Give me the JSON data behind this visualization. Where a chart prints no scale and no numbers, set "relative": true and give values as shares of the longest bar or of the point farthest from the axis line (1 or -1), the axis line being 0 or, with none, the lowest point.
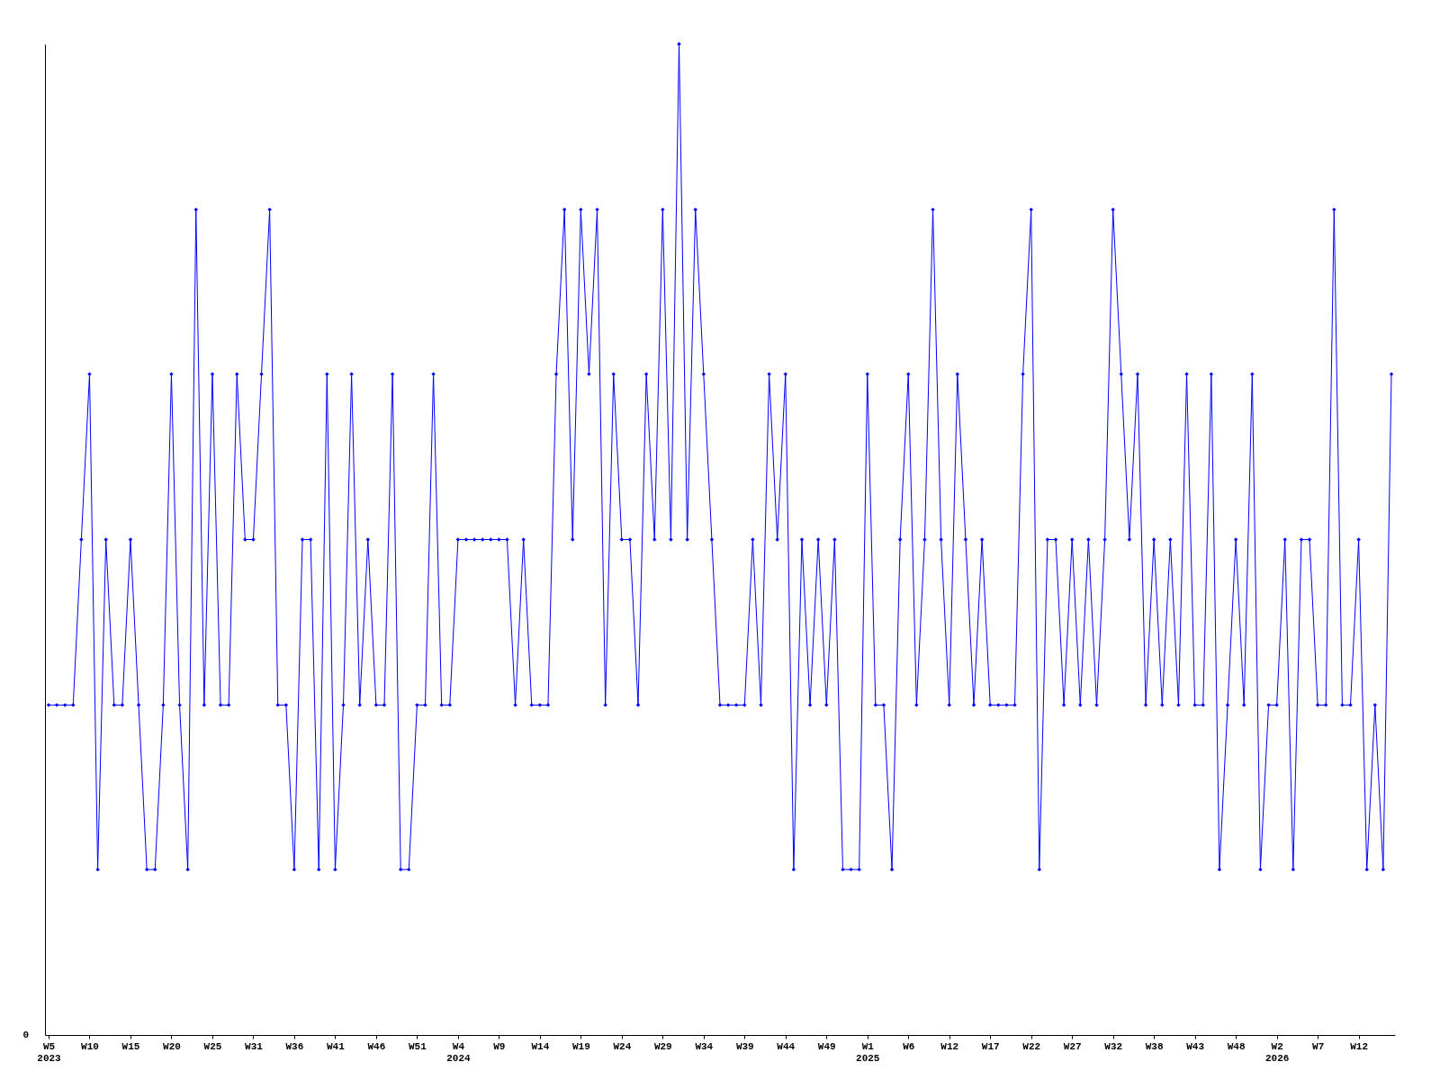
{
  "chart_data": {
    "type": "line",
    "relative": true,
    "marker": "diamond",
    "line_style": "solid",
    "grid": false,
    "annotations": [
      "0"
    ],
    "categories": [
      "W5\n2023",
      null,
      null,
      null,
      null,
      "W10",
      null,
      null,
      null,
      null,
      "W15",
      null,
      null,
      null,
      null,
      "W20",
      null,
      null,
      null,
      null,
      "W25",
      null,
      null,
      null,
      null,
      "W31",
      null,
      null,
      null,
      null,
      "W36",
      null,
      null,
      null,
      null,
      "W41",
      null,
      null,
      null,
      null,
      "W46",
      null,
      null,
      null,
      null,
      "W51",
      null,
      null,
      null,
      null,
      "W4\n2024",
      null,
      null,
      null,
      null,
      "W9",
      null,
      null,
      null,
      null,
      "W14",
      null,
      null,
      null,
      null,
      "W19",
      null,
      null,
      null,
      null,
      "W24",
      null,
      null,
      null,
      null,
      "W29",
      null,
      null,
      null,
      null,
      "W34",
      null,
      null,
      null,
      null,
      "W39",
      null,
      null,
      null,
      null,
      "W44",
      null,
      null,
      null,
      null,
      "W49",
      null,
      null,
      null,
      null,
      "W1\n2025",
      null,
      null,
      null,
      null,
      "W6",
      null,
      null,
      null,
      null,
      "W12",
      null,
      null,
      null,
      null,
      "W17",
      null,
      null,
      null,
      null,
      "W22",
      null,
      null,
      null,
      null,
      "W27",
      null,
      null,
      null,
      null,
      "W32",
      null,
      null,
      null,
      null,
      "W38",
      null,
      null,
      null,
      null,
      "W43",
      null,
      null,
      null,
      null,
      "W48",
      null,
      null,
      null,
      null,
      "W2\n2026",
      null,
      null,
      null,
      null,
      "W7",
      null,
      null,
      null,
      null,
      "W12",
      null,
      null,
      null,
      null
    ],
    "series": [
      {
        "color": "#0000ff",
        "values": [
          0.333,
          0.333,
          0.333,
          0.333,
          0.5,
          0.667,
          0.167,
          0.5,
          0.333,
          0.333,
          0.5,
          0.333,
          0.167,
          0.167,
          0.333,
          0.667,
          0.333,
          0.167,
          0.833,
          0.333,
          0.667,
          0.333,
          0.333,
          0.667,
          0.5,
          0.5,
          0.667,
          0.833,
          0.333,
          0.333,
          0.167,
          0.5,
          0.5,
          0.167,
          0.667,
          0.167,
          0.333,
          0.667,
          0.333,
          0.5,
          0.333,
          0.333,
          0.667,
          0.167,
          0.167,
          0.333,
          0.333,
          0.667,
          0.333,
          0.333,
          0.5,
          0.5,
          0.5,
          0.5,
          0.5,
          0.5,
          0.5,
          0.333,
          0.5,
          0.333,
          0.333,
          0.333,
          0.667,
          0.833,
          0.5,
          0.833,
          0.667,
          0.833,
          0.333,
          0.667,
          0.5,
          0.5,
          0.333,
          0.667,
          0.5,
          0.833,
          0.5,
          1,
          0.5,
          0.833,
          0.667,
          0.5,
          0.333,
          0.333,
          0.333,
          0.333,
          0.5,
          0.333,
          0.667,
          0.5,
          0.667,
          0.167,
          0.5,
          0.333,
          0.5,
          0.333,
          0.5,
          0.167,
          0.167,
          0.167,
          0.667,
          0.333,
          0.333,
          0.167,
          0.5,
          0.667,
          0.333,
          0.5,
          0.833,
          0.5,
          0.333,
          0.667,
          0.5,
          0.333,
          0.5,
          0.333,
          0.333,
          0.333,
          0.333,
          0.667,
          0.833,
          0.167,
          0.5,
          0.5,
          0.333,
          0.5,
          0.333,
          0.5,
          0.333,
          0.5,
          0.833,
          0.667,
          0.5,
          0.667,
          0.333,
          0.5,
          0.333,
          0.5,
          0.333,
          0.667,
          0.333,
          0.333,
          0.667,
          0.167,
          0.333,
          0.5,
          0.333,
          0.667,
          0.167,
          0.333,
          0.333,
          0.5,
          0.167,
          0.5,
          0.5,
          0.333,
          0.333,
          0.833,
          0.333,
          0.333,
          0.5,
          0.167,
          0.333,
          0.167,
          0.667
        ]
      }
    ]
  }
}
